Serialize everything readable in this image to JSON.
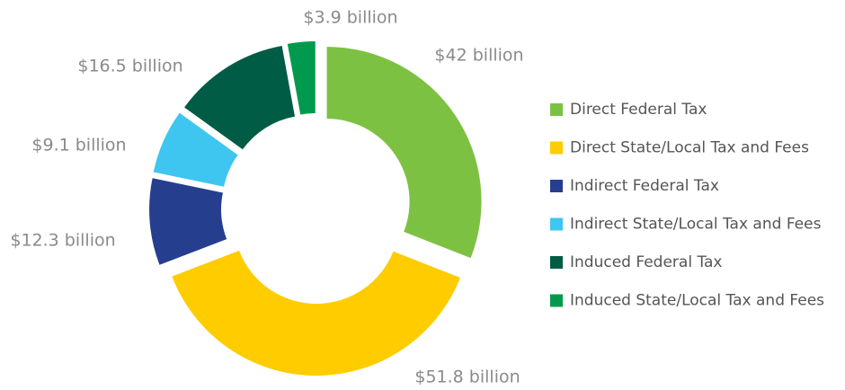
{
  "chart_data": {
    "type": "donut",
    "categories": [
      "Direct Federal Tax",
      "Direct State/Local Tax and Fees",
      "Indirect Federal Tax",
      "Indirect State/Local Tax and Fees",
      "Induced Federal Tax",
      "Induced State/Local Tax and Fees"
    ],
    "values": [
      42,
      51.8,
      12.3,
      9.1,
      16.5,
      3.9
    ],
    "value_labels": [
      "$42 billion",
      "$51.8 billion",
      "$12.3 billion",
      "$9.1 billion",
      "$16.5 billion",
      "$3.9 billion"
    ],
    "colors": [
      "#7dc142",
      "#ffcc00",
      "#253f8e",
      "#3ec6f0",
      "#005c45",
      "#009a4e"
    ],
    "legend": "right"
  }
}
